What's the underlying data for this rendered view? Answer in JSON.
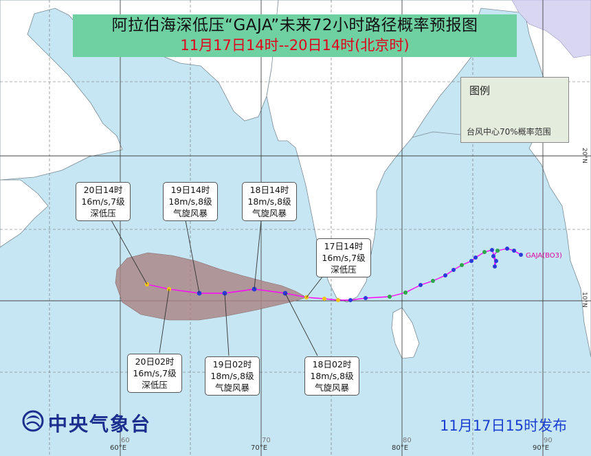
{
  "title": {
    "line1": "阿拉伯海深低压“GAJA”未来72小时路径概率预报图",
    "line2": "11月17日14时--20日14时(北京时)"
  },
  "legend": {
    "title": "图例",
    "item": "台风中心70%概率范围",
    "cone_color": "#a98485"
  },
  "storm_label": "GAJA(BO3)",
  "forecasts": [
    {
      "time": "17日14时",
      "wind": "16m/s,7级",
      "category": "深低压"
    },
    {
      "time": "18日02时",
      "wind": "18m/s,8级",
      "category": "气旋风暴"
    },
    {
      "time": "18日14时",
      "wind": "18m/s,8级",
      "category": "气旋风暴"
    },
    {
      "time": "19日02时",
      "wind": "18m/s,8级",
      "category": "气旋风暴"
    },
    {
      "time": "19日14时",
      "wind": "18m/s,8级",
      "category": "气旋风暴"
    },
    {
      "time": "20日02时",
      "wind": "16m/s,7级",
      "category": "深低压"
    },
    {
      "time": "20日14时",
      "wind": "16m/s,7级",
      "category": "深低压"
    }
  ],
  "axes": {
    "lon_bottom": [
      "60°E",
      "70°E",
      "80°E",
      "90°E"
    ],
    "lon_inner": [
      "60",
      "70",
      "80",
      "90"
    ],
    "lat": [
      "20°N",
      "10°N"
    ]
  },
  "footer": {
    "agency": "中央气象台",
    "issued": "11月17日15时发布"
  },
  "colors": {
    "sea": "#c6e6f3",
    "land": "#ffffff",
    "track": "#ff00ff",
    "title_bg": "#6fd0a2",
    "title_line2": "#e0001b",
    "agency": "#1a2f8e",
    "issued": "#1a3fd0"
  }
}
